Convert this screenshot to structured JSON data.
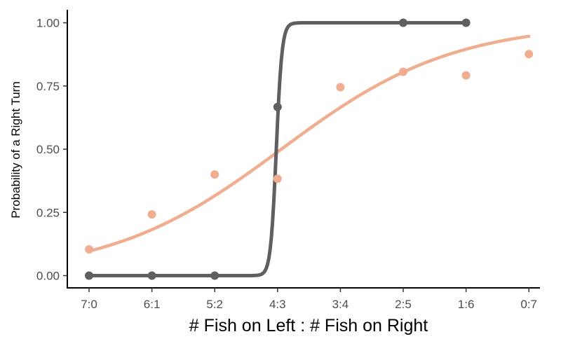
{
  "chart_data": {
    "type": "scatter",
    "title": "",
    "xlabel": "# Fish on Left : # Fish on Right",
    "ylabel": "Probability of a Right Turn",
    "categories": [
      "7:0",
      "6:1",
      "5:2",
      "4:3",
      "3:4",
      "2:5",
      "1:6",
      "0:7"
    ],
    "yticks": [
      "0.00",
      "0.25",
      "0.50",
      "0.75",
      "1.00"
    ],
    "ylim": [
      -0.04,
      1.04
    ],
    "grid": false,
    "legend": "none",
    "series": [
      {
        "color": "#5f5f5f",
        "points": [
          {
            "x": 1,
            "y": 0.0
          },
          {
            "x": 2,
            "y": 0.0
          },
          {
            "x": 3,
            "y": 0.0
          },
          {
            "x": 4,
            "y": 0.667
          },
          {
            "x": 6,
            "y": 1.0
          },
          {
            "x": 7,
            "y": 1.0
          }
        ],
        "fit": {
          "model": "logistic",
          "midpoint": 3.98,
          "slope": 22,
          "x_range": [
            1,
            7
          ]
        }
      },
      {
        "color": "#f0ad90",
        "points": [
          {
            "x": 1,
            "y": 0.104
          },
          {
            "x": 2,
            "y": 0.242
          },
          {
            "x": 3,
            "y": 0.4
          },
          {
            "x": 4,
            "y": 0.383
          },
          {
            "x": 5,
            "y": 0.745
          },
          {
            "x": 6,
            "y": 0.806
          },
          {
            "x": 7,
            "y": 0.792
          },
          {
            "x": 8,
            "y": 0.876
          }
        ],
        "fit": {
          "model": "logistic",
          "midpoint": 4.06,
          "slope": 0.73,
          "x_range": [
            1,
            8
          ]
        }
      }
    ]
  }
}
